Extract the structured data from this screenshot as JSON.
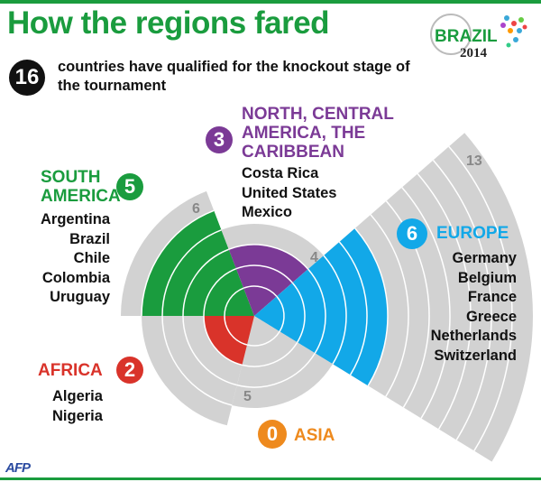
{
  "title": "How the regions fared",
  "total": {
    "count": "16",
    "text": "countries have qualified for the knockout stage of the tournament"
  },
  "logo": {
    "text1": "BRAZIL",
    "text2": "2014"
  },
  "credit": "AFP",
  "chart_data": {
    "type": "polar-area",
    "unit": "teams",
    "series": [
      {
        "region": "SOUTH AMERICA",
        "qualified": 5,
        "total": 6,
        "color": "#1a9c3e",
        "countries": [
          "Argentina",
          "Brazil",
          "Chile",
          "Colombia",
          "Uruguay"
        ]
      },
      {
        "region": "NORTH, CENTRAL AMERICA, THE CARIBBEAN",
        "qualified": 3,
        "total": 4,
        "color": "#7b3a96",
        "countries": [
          "Costa Rica",
          "United States",
          "Mexico"
        ]
      },
      {
        "region": "EUROPE",
        "qualified": 6,
        "total": 13,
        "color": "#12a8e8",
        "countries": [
          "Germany",
          "Belgium",
          "France",
          "Greece",
          "Netherlands",
          "Switzerland"
        ]
      },
      {
        "region": "ASIA",
        "qualified": 0,
        "total": 4,
        "color": "#ee8a1e",
        "countries": []
      },
      {
        "region": "AFRICA",
        "qualified": 2,
        "total": 5,
        "color": "#d9332a",
        "countries": [
          "Algeria",
          "Nigeria"
        ]
      }
    ],
    "background_color": "#d2d2d2"
  }
}
